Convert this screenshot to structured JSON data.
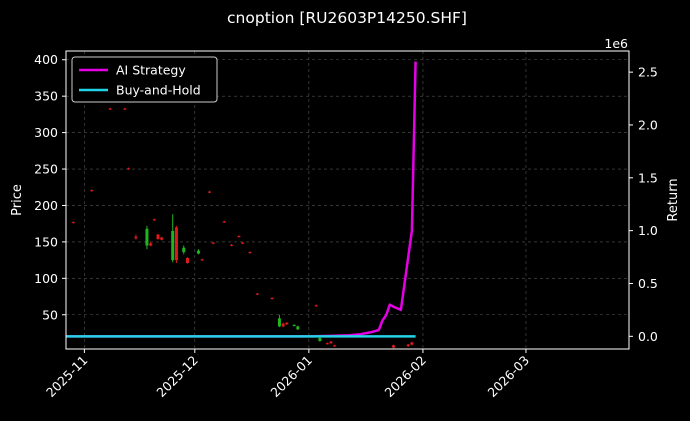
{
  "chart_data": {
    "type": "line",
    "title": "cnoption [RU2603P14250.SHF]",
    "ylabel": "Price",
    "y2label": "Return",
    "y2_offset_text": "1e6",
    "xlim": [
      "2025-10-27",
      "2026-03-29"
    ],
    "ylim": [
      3,
      412
    ],
    "y2lim": [
      -0.12,
      2.7
    ],
    "x_ticks": [
      "2025-11",
      "2025-12",
      "2026-01",
      "2026-02",
      "2026-03"
    ],
    "x_tick_dates": [
      "2025-11-01",
      "2025-12-01",
      "2026-01-01",
      "2026-02-01",
      "2026-03-01"
    ],
    "y_ticks": [
      50,
      100,
      150,
      200,
      250,
      300,
      350,
      400
    ],
    "y_tick_labels": [
      "50",
      "100",
      "150",
      "200",
      "250",
      "300",
      "350",
      "400"
    ],
    "y2_ticks": [
      0,
      0.5,
      1,
      1.5,
      2,
      2.5
    ],
    "y2_tick_labels": [
      "0.0",
      "0.5",
      "1.0",
      "1.5",
      "2.0",
      "2.5"
    ],
    "grid": true,
    "legend_position": "top-left",
    "colors": {
      "background": "#000000",
      "strategy": "#e600e6",
      "buyhold": "#22d3e6",
      "up": "#1fb51f",
      "down": "#e01a1a",
      "grid": "#555555",
      "text": "#ffffff"
    },
    "series": [
      {
        "name": "AI Strategy",
        "axis": "right",
        "dates": [
          "2025-10-27",
          "2026-01-01",
          "2026-01-08",
          "2026-01-12",
          "2026-01-15",
          "2026-01-18",
          "2026-01-19",
          "2026-01-20",
          "2026-01-21",
          "2026-01-22",
          "2026-01-23",
          "2026-01-24",
          "2026-01-26",
          "2026-01-27",
          "2026-01-28",
          "2026-01-29",
          "2026-01-30"
        ],
        "values": [
          0,
          0,
          0.005,
          0.01,
          0.02,
          0.04,
          0.05,
          0.06,
          0.15,
          0.2,
          0.3,
          0.28,
          0.25,
          0.5,
          0.75,
          1.0,
          2.6
        ]
      },
      {
        "name": "Buy-and-Hold",
        "axis": "right",
        "dates": [
          "2025-10-27",
          "2026-01-30"
        ],
        "values": [
          0,
          0
        ]
      }
    ],
    "candles": [
      {
        "date": "2025-10-29",
        "open": 177,
        "high": 178,
        "low": 176,
        "close": 176
      },
      {
        "date": "2025-11-03",
        "open": 221,
        "high": 222,
        "low": 219,
        "close": 220
      },
      {
        "date": "2025-11-08",
        "open": 333,
        "high": 334,
        "low": 331,
        "close": 332
      },
      {
        "date": "2025-11-12",
        "open": 333,
        "high": 334,
        "low": 331,
        "close": 332
      },
      {
        "date": "2025-11-13",
        "open": 251,
        "high": 252,
        "low": 249,
        "close": 250
      },
      {
        "date": "2025-11-15",
        "open": 157,
        "high": 160,
        "low": 153,
        "close": 155
      },
      {
        "date": "2025-11-18",
        "open": 145,
        "high": 172,
        "low": 140,
        "close": 168
      },
      {
        "date": "2025-11-19",
        "open": 148,
        "high": 150,
        "low": 144,
        "close": 145
      },
      {
        "date": "2025-11-20",
        "open": 181,
        "high": 182,
        "low": 179,
        "close": 180
      },
      {
        "date": "2025-11-21",
        "open": 160,
        "high": 161,
        "low": 153,
        "close": 154
      },
      {
        "date": "2025-11-22",
        "open": 156,
        "high": 157,
        "low": 152,
        "close": 153
      },
      {
        "date": "2025-11-25",
        "open": 125,
        "high": 188,
        "low": 122,
        "close": 165
      },
      {
        "date": "2025-11-26",
        "open": 170,
        "high": 172,
        "low": 121,
        "close": 125
      },
      {
        "date": "2025-11-28",
        "open": 136,
        "high": 145,
        "low": 133,
        "close": 142
      },
      {
        "date": "2025-11-29",
        "open": 128,
        "high": 129,
        "low": 120,
        "close": 121
      },
      {
        "date": "2025-12-02",
        "open": 134,
        "high": 140,
        "low": 133,
        "close": 138
      },
      {
        "date": "2025-12-03",
        "open": 126,
        "high": 127,
        "low": 124,
        "close": 125
      },
      {
        "date": "2025-12-05",
        "open": 219,
        "high": 220,
        "low": 217,
        "close": 218
      },
      {
        "date": "2025-12-06",
        "open": 149,
        "high": 150,
        "low": 147,
        "close": 148
      },
      {
        "date": "2025-12-09",
        "open": 178,
        "high": 179,
        "low": 176,
        "close": 177
      },
      {
        "date": "2025-12-11",
        "open": 146,
        "high": 147,
        "low": 144,
        "close": 145
      },
      {
        "date": "2025-12-13",
        "open": 158,
        "high": 159,
        "low": 156,
        "close": 157
      },
      {
        "date": "2025-12-14",
        "open": 149,
        "high": 150,
        "low": 147,
        "close": 148
      },
      {
        "date": "2025-12-16",
        "open": 136,
        "high": 137,
        "low": 134,
        "close": 135
      },
      {
        "date": "2025-12-18",
        "open": 79,
        "high": 80,
        "low": 77,
        "close": 78
      },
      {
        "date": "2025-12-22",
        "open": 73,
        "high": 74,
        "low": 71,
        "close": 72
      },
      {
        "date": "2025-12-24",
        "open": 34,
        "high": 50,
        "low": 33,
        "close": 45
      },
      {
        "date": "2025-12-25",
        "open": 38,
        "high": 39,
        "low": 33,
        "close": 34
      },
      {
        "date": "2025-12-26",
        "open": 39,
        "high": 40,
        "low": 36,
        "close": 37
      },
      {
        "date": "2025-12-28",
        "open": 35,
        "high": 37,
        "low": 34,
        "close": 36
      },
      {
        "date": "2025-12-29",
        "open": 30,
        "high": 35,
        "low": 29,
        "close": 34
      },
      {
        "date": "2026-01-03",
        "open": 63,
        "high": 64,
        "low": 61,
        "close": 62
      },
      {
        "date": "2026-01-04",
        "open": 14,
        "high": 20,
        "low": 13,
        "close": 18
      },
      {
        "date": "2026-01-06",
        "open": 11,
        "high": 12,
        "low": 9,
        "close": 10
      },
      {
        "date": "2026-01-07",
        "open": 13,
        "high": 14,
        "low": 10,
        "close": 11
      },
      {
        "date": "2026-01-08",
        "open": 8,
        "high": 9,
        "low": 6,
        "close": 7
      },
      {
        "date": "2026-01-24",
        "open": 8,
        "high": 9,
        "low": 4,
        "close": 5
      },
      {
        "date": "2026-01-28",
        "open": 9,
        "high": 10,
        "low": 6,
        "close": 7
      },
      {
        "date": "2026-01-29",
        "open": 12,
        "high": 13,
        "low": 8,
        "close": 9
      }
    ]
  }
}
